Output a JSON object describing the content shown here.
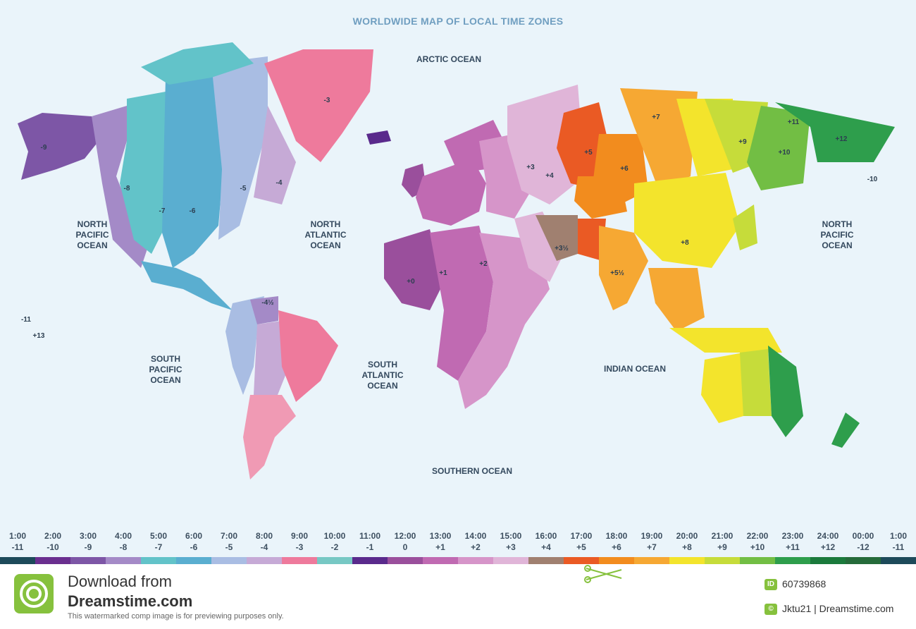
{
  "map": {
    "title": "WORLDWIDE MAP OF LOCAL TIME ZONES",
    "oceans": [
      {
        "key": "arctic",
        "label": "ARCTIC OCEAN"
      },
      {
        "key": "npacific_w",
        "label": "NORTH PACIFIC OCEAN"
      },
      {
        "key": "natlantic",
        "label": "NORTH ATLANTIC OCEAN"
      },
      {
        "key": "spacific",
        "label": "SOUTH PACIFIC OCEAN"
      },
      {
        "key": "satlantic",
        "label": "SOUTH ATLANTIC OCEAN"
      },
      {
        "key": "indian",
        "label": "INDIAN OCEAN"
      },
      {
        "key": "npacific_e",
        "label": "NORTH PACIFIC OCEAN"
      },
      {
        "key": "southern",
        "label": "SOUTHERN OCEAN"
      }
    ],
    "zone_labels": [
      "-9",
      "-8",
      "-7",
      "-6",
      "-5",
      "-4",
      "-3",
      "+0",
      "+1",
      "+2",
      "+3",
      "+3½",
      "+4",
      "+5",
      "+5½",
      "+6",
      "+7",
      "+8",
      "+9",
      "+10",
      "+11",
      "+12",
      "-10",
      "-11",
      "+13",
      "-4½"
    ]
  },
  "timebar": [
    {
      "time": "1:00",
      "offset": "-11",
      "color": "#1d4a5a"
    },
    {
      "time": "2:00",
      "offset": "-10",
      "color": "#6a2f8f"
    },
    {
      "time": "3:00",
      "offset": "-9",
      "color": "#7d56a6"
    },
    {
      "time": "4:00",
      "offset": "-8",
      "color": "#a48ac7"
    },
    {
      "time": "5:00",
      "offset": "-7",
      "color": "#62c3c9"
    },
    {
      "time": "6:00",
      "offset": "-6",
      "color": "#5aaed0"
    },
    {
      "time": "7:00",
      "offset": "-5",
      "color": "#a9bde3"
    },
    {
      "time": "8:00",
      "offset": "-4",
      "color": "#c6aad6"
    },
    {
      "time": "9:00",
      "offset": "-3",
      "color": "#ee7a9c"
    },
    {
      "time": "10:00",
      "offset": "-2",
      "color": "#77c8c4"
    },
    {
      "time": "11:00",
      "offset": "-1",
      "color": "#5a2a8c"
    },
    {
      "time": "12:00",
      "offset": "0",
      "color": "#9a4f9c"
    },
    {
      "time": "13:00",
      "offset": "+1",
      "color": "#c06ab2"
    },
    {
      "time": "14:00",
      "offset": "+2",
      "color": "#d695c9"
    },
    {
      "time": "15:00",
      "offset": "+3",
      "color": "#e0b5d8"
    },
    {
      "time": "16:00",
      "offset": "+4",
      "color": "#a08070"
    },
    {
      "time": "17:00",
      "offset": "+5",
      "color": "#ea5a24"
    },
    {
      "time": "18:00",
      "offset": "+6",
      "color": "#f28c1e"
    },
    {
      "time": "19:00",
      "offset": "+7",
      "color": "#f6a833"
    },
    {
      "time": "20:00",
      "offset": "+8",
      "color": "#f3e42c"
    },
    {
      "time": "21:00",
      "offset": "+9",
      "color": "#c6dc3a"
    },
    {
      "time": "22:00",
      "offset": "+10",
      "color": "#72be44"
    },
    {
      "time": "23:00",
      "offset": "+11",
      "color": "#2e9e4c"
    },
    {
      "time": "24:00",
      "offset": "+12",
      "color": "#1b7a3c"
    },
    {
      "time": "00:00",
      "offset": "-12",
      "color": "#256b3a"
    },
    {
      "time": "1:00",
      "offset": "-11",
      "color": "#1d4a5a"
    }
  ],
  "footer": {
    "download_line1": "Download from",
    "download_line2": "Dreamstime.com",
    "note": "This watermarked comp image is for previewing purposes only.",
    "id_badge": "ID",
    "id_value": "60739868",
    "copy_badge": "©",
    "copyright": "Jktu21 | Dreamstime.com"
  }
}
